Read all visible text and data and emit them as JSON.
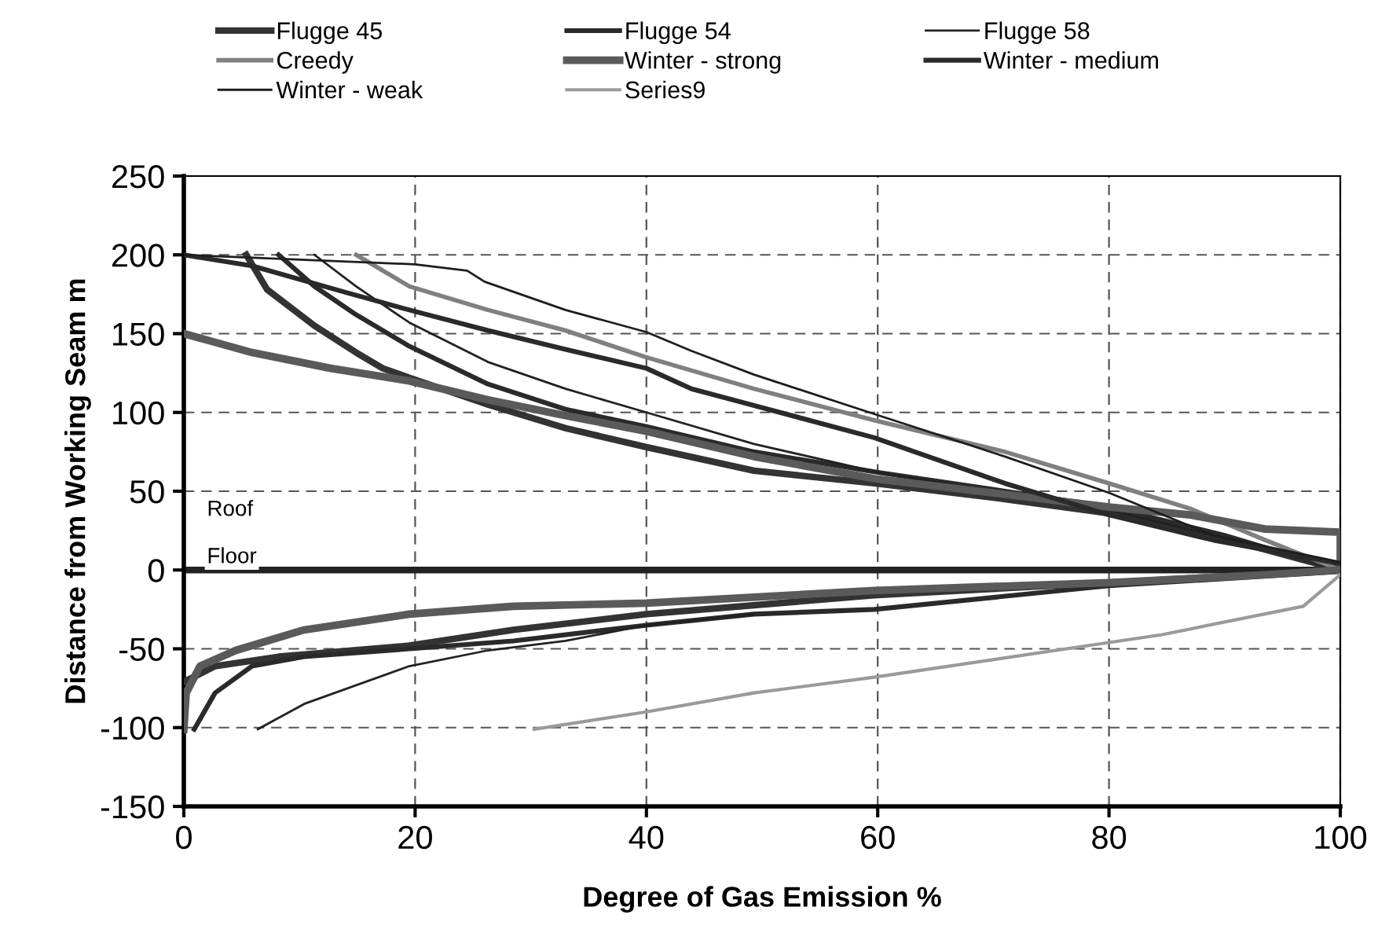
{
  "chart_data": {
    "type": "line",
    "xlabel": "Degree of Gas Emission %",
    "ylabel": "Distance from Working Seam m",
    "xlim": [
      0,
      100
    ],
    "xticks": [
      0,
      20,
      40,
      60,
      80,
      100
    ],
    "ylim": [
      -150,
      250
    ],
    "yticks": [
      -150,
      -100,
      -50,
      0,
      50,
      100,
      150,
      200,
      250
    ],
    "grid": true,
    "legend": "top",
    "line_style": "solid",
    "marker": "none",
    "ref_lines": [
      {
        "axis": "y",
        "value": 0,
        "color": "#222222"
      }
    ],
    "annotations": [
      "Roof",
      "Floor"
    ],
    "series": [
      {
        "name": "Flugge 45",
        "color": "#333333",
        "x": [
          5.4,
          7.2,
          11.3,
          14.9,
          17.2,
          19.5,
          26.3,
          33,
          40,
          49.3,
          59.7,
          71,
          80,
          89,
          100,
          null,
          0,
          2.7,
          8.2,
          19.5,
          28.5,
          40,
          59.7,
          80,
          100
        ],
        "values": [
          200,
          178,
          155,
          138,
          128,
          122,
          105,
          90,
          78,
          63,
          55,
          45,
          36,
          22,
          0,
          null,
          -71,
          -61,
          -55,
          -48,
          -38,
          -28,
          -16,
          -8,
          0
        ]
      },
      {
        "name": "Flugge 54",
        "color": "#2a2a2a",
        "x": [
          8.2,
          11.3,
          14.9,
          19.5,
          26.3,
          33,
          40,
          49.3,
          60,
          71,
          80,
          90,
          100,
          null,
          0.9,
          2.7,
          5.9,
          10.4,
          19.5,
          28.5,
          40,
          49.3,
          59.7,
          80,
          100
        ],
        "values": [
          200,
          180,
          162,
          142,
          118,
          102,
          91,
          75,
          62,
          50,
          40,
          22,
          0,
          null,
          -101,
          -78,
          -61,
          -55,
          -50,
          -45,
          -35,
          -28,
          -25,
          -10,
          -1
        ]
      },
      {
        "name": "Flugge 58",
        "color": "#222222",
        "x": [
          11.3,
          14.9,
          19.5,
          26.3,
          33,
          40,
          49.3,
          60,
          80,
          100,
          null,
          6.4,
          10.4,
          19.5,
          26.3,
          33,
          40,
          49.3
        ],
        "values": [
          200,
          180,
          157,
          132,
          115,
          100,
          80,
          62,
          38,
          2,
          null,
          -101,
          -85,
          -61,
          -51,
          -45,
          -35,
          -28
        ]
      },
      {
        "name": "Creedy",
        "color": "#808080",
        "x": [
          14.9,
          19.5,
          26.3,
          33,
          40,
          49.3,
          59.7,
          71,
          80,
          87,
          93.5,
          100
        ],
        "values": [
          200,
          180,
          165,
          152,
          135,
          115,
          95,
          75,
          55,
          39,
          19,
          0
        ]
      },
      {
        "name": "Winter - strong",
        "color": "#5a5a5a",
        "x": [
          0,
          5.9,
          12.7,
          19.5,
          26.3,
          33,
          40,
          49.3,
          59.7,
          71,
          80,
          87,
          93.5,
          100,
          100,
          null,
          0,
          0.2,
          1.4,
          4.5,
          10.4,
          19.5,
          28.5,
          40,
          59.7,
          80,
          93.5,
          100
        ],
        "values": [
          150,
          138,
          128,
          120,
          108,
          98,
          88,
          72,
          58,
          48,
          40,
          35,
          26,
          24,
          0,
          null,
          -101,
          -78,
          -61,
          -51,
          -38,
          -28,
          -23,
          -21,
          -13,
          -8,
          -3,
          0
        ]
      },
      {
        "name": "Winter - medium",
        "color": "#2a2a2a",
        "x": [
          0,
          5.9,
          13.6,
          19.5,
          26.3,
          33,
          40,
          43.9,
          59.7,
          71,
          80,
          89,
          100
        ],
        "values": [
          200,
          193,
          177,
          165,
          152,
          140,
          128,
          115,
          84,
          55,
          35,
          19,
          4
        ]
      },
      {
        "name": "Winter - weak",
        "color": "#1e1e1e",
        "x": [
          0,
          20,
          24.5,
          26,
          33,
          40,
          43.9,
          49.3,
          59.7,
          71,
          80,
          89,
          100
        ],
        "values": [
          200,
          194,
          190,
          183,
          165,
          151,
          139,
          124,
          99,
          72,
          49,
          22,
          5
        ]
      },
      {
        "name": "Series9",
        "color": "#9a9a9a",
        "x": [
          30.3,
          40,
          49.3,
          59.7,
          80,
          84.6,
          96.8,
          100
        ],
        "values": [
          -101,
          -90,
          -78,
          -68,
          -46,
          -41,
          -23,
          -3
        ]
      }
    ]
  }
}
